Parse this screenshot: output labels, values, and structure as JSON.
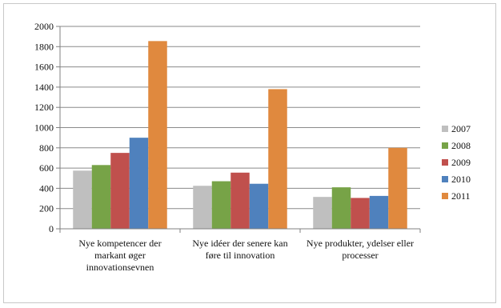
{
  "chart_data": {
    "type": "bar",
    "title": "",
    "xlabel": "",
    "ylabel": "",
    "ylim": [
      0,
      2000
    ],
    "yticks": [
      0,
      200,
      400,
      600,
      800,
      1000,
      1200,
      1400,
      1600,
      1800,
      2000
    ],
    "grid": true,
    "legend_position": "right",
    "categories": [
      [
        "Nye kompetencer der",
        "markant øger",
        "innovationsevnen"
      ],
      [
        "Nye idéer der senere kan",
        "føre til innovation"
      ],
      [
        "Nye produkter, ydelser eller",
        "processer"
      ]
    ],
    "series": [
      {
        "name": "2007",
        "color": "#bfbfbf",
        "values": [
          575,
          425,
          315
        ]
      },
      {
        "name": "2008",
        "color": "#77a347",
        "values": [
          630,
          470,
          410
        ]
      },
      {
        "name": "2009",
        "color": "#c0504d",
        "values": [
          750,
          555,
          305
        ]
      },
      {
        "name": "2010",
        "color": "#4f81bd",
        "values": [
          900,
          445,
          325
        ]
      },
      {
        "name": "2011",
        "color": "#e0893e",
        "values": [
          1855,
          1380,
          800
        ]
      }
    ]
  }
}
